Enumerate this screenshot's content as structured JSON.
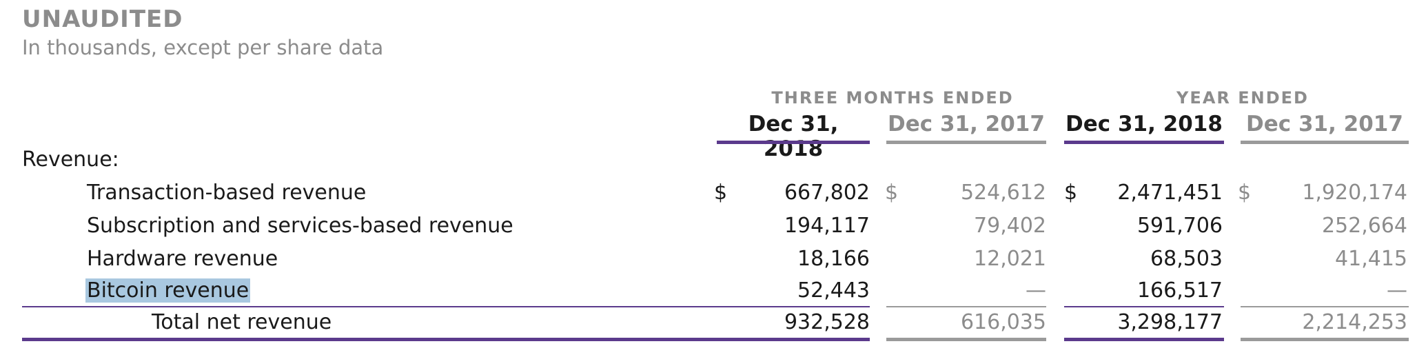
{
  "header": {
    "title": "UNAUDITED",
    "subtitle": "In thousands, except per share data"
  },
  "periods": {
    "three_months": "THREE MONTHS ENDED",
    "year": "YEAR ENDED"
  },
  "columns": [
    "Dec 31, 2018",
    "Dec 31, 2017",
    "Dec 31, 2018",
    "Dec 31, 2017"
  ],
  "section_label": "Revenue:",
  "currency_symbol": "$",
  "rows": [
    {
      "label": "Transaction-based revenue",
      "values": [
        "667,802",
        "524,612",
        "2,471,451",
        "1,920,174"
      ]
    },
    {
      "label": "Subscription and services-based revenue",
      "values": [
        "194,117",
        "79,402",
        "591,706",
        "252,664"
      ]
    },
    {
      "label": "Hardware revenue",
      "values": [
        "18,166",
        "12,021",
        "68,503",
        "41,415"
      ]
    },
    {
      "label": "Bitcoin revenue",
      "values": [
        "52,443",
        "—",
        "166,517",
        "—"
      ]
    }
  ],
  "total": {
    "label": "Total net revenue",
    "values": [
      "932,528",
      "616,035",
      "3,298,177",
      "2,214,253"
    ]
  },
  "colors": {
    "current_accent": "#5b3a8c",
    "prior_accent": "#9a9a9a",
    "highlight": "#a9c8e0"
  }
}
